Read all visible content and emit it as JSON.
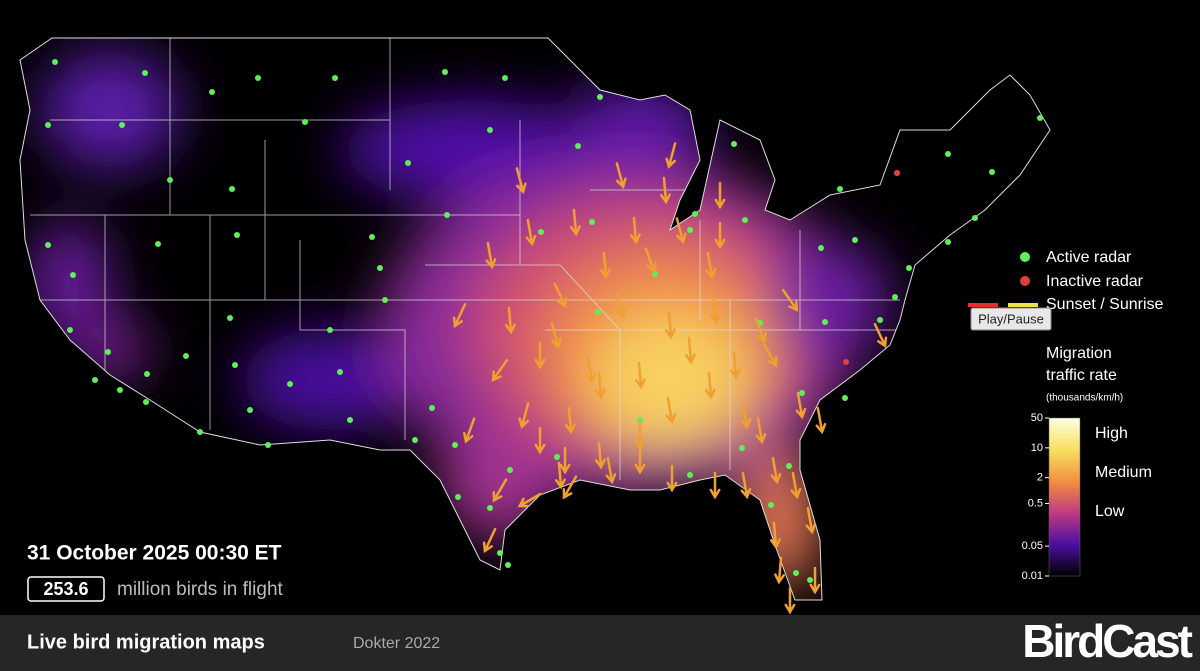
{
  "map": {
    "timestamp": "31 October 2025 00:30 ET",
    "birds_in_flight": {
      "value": 253.6,
      "caption": "million birds in flight"
    }
  },
  "legend": {
    "items": [
      "Active radar",
      "Inactive radar",
      "Sunset / Sunrise"
    ],
    "tooltip": "Play/Pause",
    "scale": {
      "title_lines": [
        "Migration",
        "traffic rate"
      ],
      "units": "(thousands/km/h)",
      "ticks": [
        50,
        10,
        2,
        0.5,
        0.05,
        0.01
      ],
      "levels": [
        "High",
        "Medium",
        "Low"
      ]
    }
  },
  "footer": {
    "title": "Live bird migration maps",
    "credit": "Dokter 2022",
    "brand": "BirdCast"
  }
}
